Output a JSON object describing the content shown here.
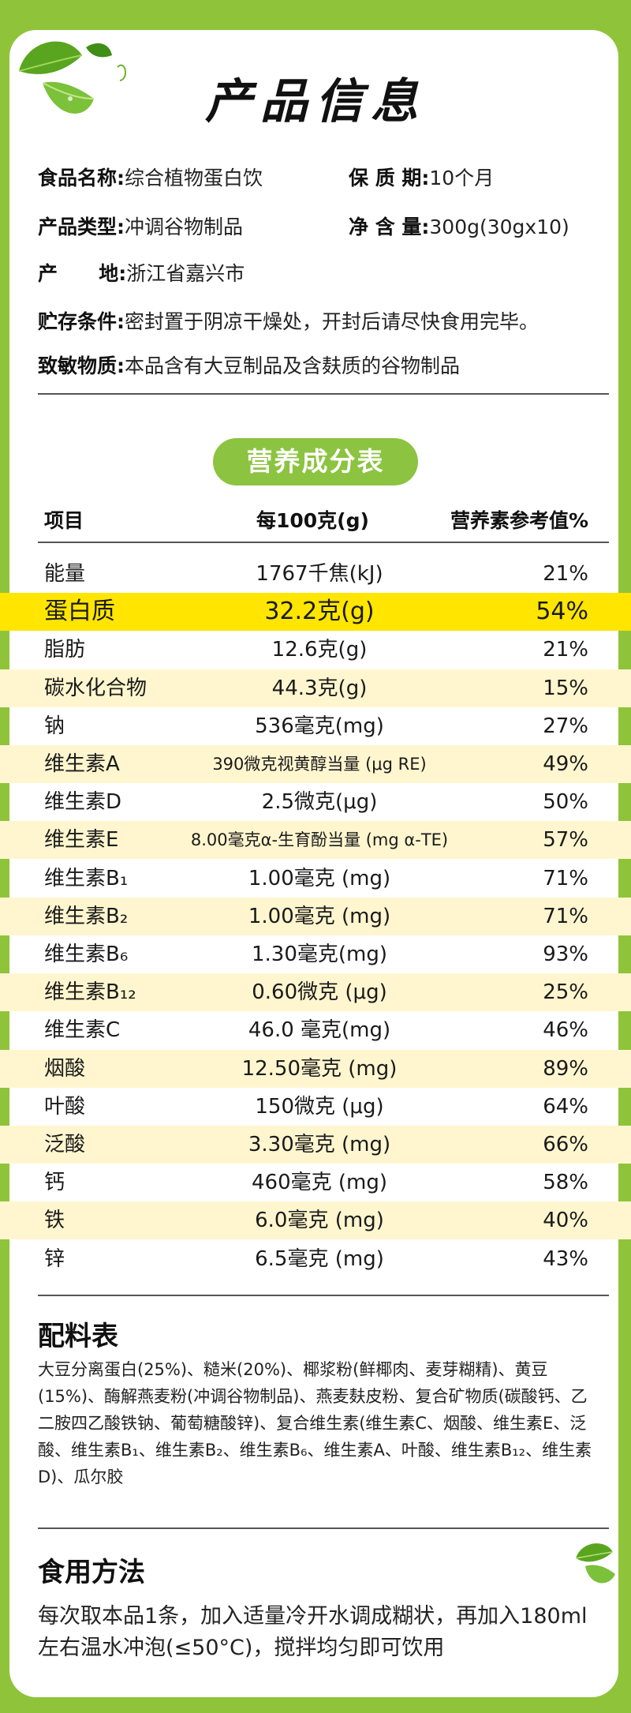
{
  "title": "产品信息",
  "info": {
    "name": {
      "label": "食品名称:",
      "value": "综合植物蛋白饮"
    },
    "shelf_life": {
      "label": "保 质 期:",
      "value": "10个月"
    },
    "type": {
      "label": "产品类型:",
      "value": "冲调谷物制品"
    },
    "net": {
      "label": "净 含 量:",
      "value": "300g(30gx10)"
    },
    "origin": {
      "label": "产      地:",
      "value": "浙江省嘉兴市"
    },
    "storage": {
      "label": "贮存条件:",
      "value": "密封置于阴凉干燥处，开封后请尽快食用完毕。"
    },
    "allergen": {
      "label": "致敏物质:",
      "value": "本品含有大豆制品及含麸质的谷物制品"
    }
  },
  "nutrition": {
    "badge": "营养成分表",
    "headers": [
      "项目",
      "每100克(g)",
      "营养素参考值%"
    ],
    "rows": [
      {
        "item": "能量",
        "per100": "1767千焦(kJ)",
        "nrv": "21%"
      },
      {
        "item": "蛋白质",
        "per100": "32.2克(g)",
        "nrv": "54%"
      },
      {
        "item": "脂肪",
        "per100": "12.6克(g)",
        "nrv": "21%"
      },
      {
        "item": "碳水化合物",
        "per100": "44.3克(g)",
        "nrv": "15%"
      },
      {
        "item": "钠",
        "per100": "536毫克(mg)",
        "nrv": "27%"
      },
      {
        "item": "维生素A",
        "per100": "390微克视黄醇当量 (μg RE)",
        "nrv": "49%"
      },
      {
        "item": "维生素D",
        "per100": "2.5微克(μg)",
        "nrv": "50%"
      },
      {
        "item": "维生素E",
        "per100": "8.00毫克α-生育酚当量 (mg α-TE)",
        "nrv": "57%"
      },
      {
        "item": "维生素B₁",
        "per100": "1.00毫克 (mg)",
        "nrv": "71%"
      },
      {
        "item": "维生素B₂",
        "per100": "1.00毫克 (mg)",
        "nrv": "71%"
      },
      {
        "item": "维生素B₆",
        "per100": "1.30毫克(mg)",
        "nrv": "93%"
      },
      {
        "item": "维生素B₁₂",
        "per100": "0.60微克 (μg)",
        "nrv": "25%"
      },
      {
        "item": "维生素C",
        "per100": "46.0 毫克(mg)",
        "nrv": "46%"
      },
      {
        "item": "烟酸",
        "per100": "12.50毫克 (mg)",
        "nrv": "89%"
      },
      {
        "item": "叶酸",
        "per100": "150微克 (μg)",
        "nrv": "64%"
      },
      {
        "item": "泛酸",
        "per100": "3.30毫克 (mg)",
        "nrv": "66%"
      },
      {
        "item": "钙",
        "per100": "460毫克 (mg)",
        "nrv": "58%"
      },
      {
        "item": "铁",
        "per100": "6.0毫克 (mg)",
        "nrv": "40%"
      },
      {
        "item": "锌",
        "per100": "6.5毫克 (mg)",
        "nrv": "43%"
      }
    ]
  },
  "ingredients": {
    "title": "配料表",
    "text": "大豆分离蛋白(25%)、糙米(20%)、椰浆粉(鲜椰肉、麦芽糊精)、黄豆(15%)、酶解燕麦粉(冲调谷物制品)、燕麦麸皮粉、复合矿物质(碳酸钙、乙二胺四乙酸铁钠、葡萄糖酸锌)、复合维生素(维生素C、烟酸、维生素E、泛酸、维生素B₁、维生素B₂、维生素B₆、维生素A、叶酸、维生素B₁₂、维生素D)、瓜尔胶"
  },
  "usage": {
    "title": "食用方法",
    "text": "每次取本品1条，加入适量冷开水调成糊状，再加入180ml左右温水冲泡(≤50°C)，搅拌均匀即可饮用"
  },
  "colors": {
    "background": "#8fc43a",
    "badge": "#8cc340",
    "highlight": "#ffe500",
    "alt_row": "#fff6cf"
  }
}
